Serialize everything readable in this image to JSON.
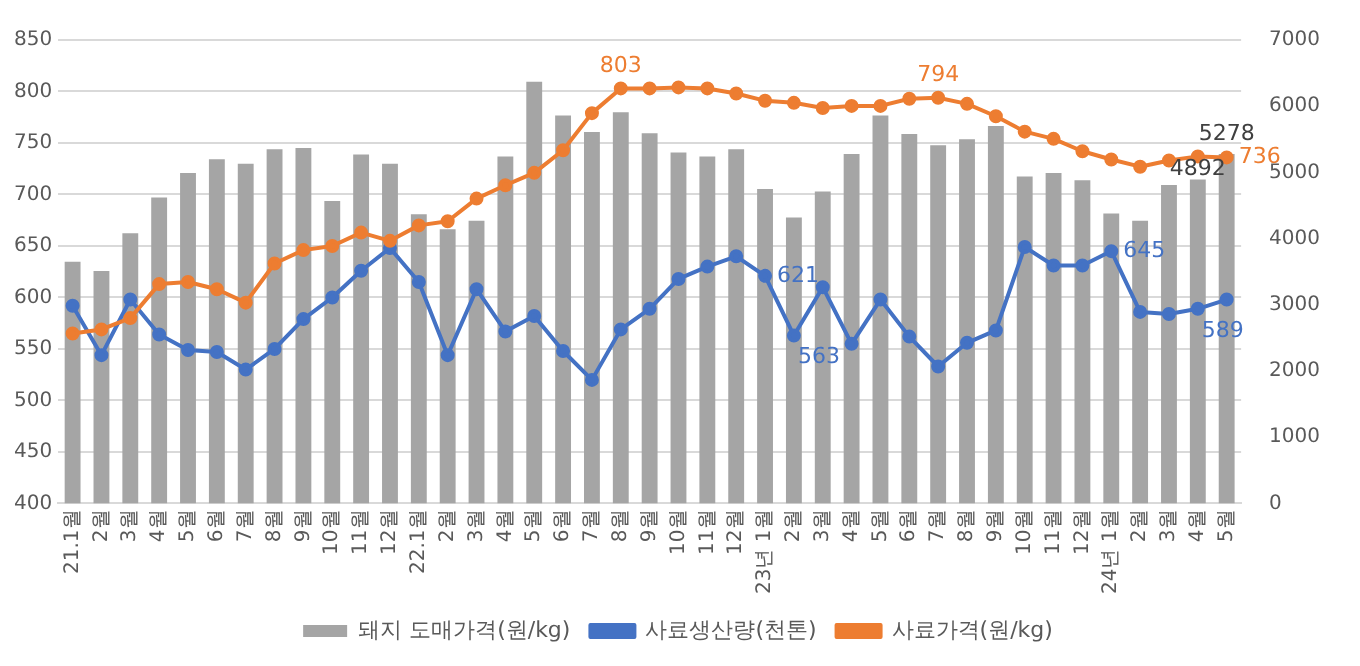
{
  "chart_data": {
    "type": "bar",
    "legend": "bottom",
    "grid": "y",
    "categories": [
      "21.1월",
      "2월",
      "3월",
      "4월",
      "5월",
      "6월",
      "7월",
      "8월",
      "9월",
      "10월",
      "11월",
      "12월",
      "22.1월",
      "2월",
      "3월",
      "4월",
      "5월",
      "6월",
      "7월",
      "8월",
      "9월",
      "10월",
      "11월",
      "12월",
      "23년 1월",
      "2월",
      "3월",
      "4월",
      "5월",
      "6월",
      "7월",
      "8월",
      "9월",
      "10월",
      "11월",
      "12월",
      "24년 1월",
      "2월",
      "3월",
      "4월",
      "5월"
    ],
    "ylim": [
      400,
      850
    ],
    "yticks": [
      400,
      450,
      500,
      550,
      600,
      650,
      700,
      750,
      800,
      850
    ],
    "y2lim": [
      0,
      7000
    ],
    "y2ticks": [
      0,
      1000,
      2000,
      3000,
      4000,
      5000,
      6000,
      7000
    ],
    "series": [
      {
        "name": "돼지 도매가격(원/kg)",
        "type": "bar",
        "axis": "y2",
        "color": "#a5a5a5",
        "values": [
          3650,
          3510,
          4080,
          4620,
          4990,
          5200,
          5130,
          5350,
          5370,
          4570,
          5270,
          5130,
          4370,
          4140,
          4270,
          5240,
          6370,
          5860,
          5610,
          5910,
          5590,
          5300,
          5240,
          5350,
          4750,
          4320,
          4710,
          5280,
          5860,
          5580,
          5410,
          5500,
          5700,
          4940,
          4990,
          4880,
          4380,
          4270,
          4810,
          4892,
          5278
        ],
        "value_labels": [
          null,
          null,
          null,
          null,
          null,
          null,
          null,
          null,
          null,
          null,
          null,
          null,
          null,
          null,
          null,
          null,
          null,
          null,
          null,
          null,
          null,
          null,
          null,
          null,
          null,
          null,
          null,
          null,
          null,
          null,
          null,
          null,
          null,
          null,
          null,
          null,
          null,
          null,
          null,
          "4892",
          "5278"
        ]
      },
      {
        "name": "사료생산량(천톤)",
        "type": "line",
        "axis": "y",
        "color": "#4472c4",
        "marker": "circle",
        "values": [
          592,
          544,
          598,
          564,
          549,
          547,
          530,
          550,
          579,
          600,
          626,
          648,
          615,
          544,
          608,
          567,
          582,
          548,
          520,
          569,
          589,
          618,
          630,
          640,
          621,
          563,
          610,
          555,
          598,
          562,
          533,
          556,
          568,
          649,
          631,
          631,
          645,
          586,
          584,
          589,
          598
        ],
        "value_labels": [
          null,
          null,
          null,
          null,
          null,
          null,
          null,
          null,
          null,
          null,
          null,
          null,
          null,
          null,
          null,
          null,
          null,
          null,
          null,
          null,
          null,
          null,
          null,
          null,
          "621",
          "563",
          null,
          null,
          null,
          null,
          null,
          null,
          null,
          null,
          null,
          null,
          "645",
          null,
          null,
          "589",
          null
        ]
      },
      {
        "name": "사료가격(원/kg)",
        "type": "line",
        "axis": "y",
        "color": "#ed7d31",
        "marker": "circle",
        "values": [
          565,
          569,
          580,
          613,
          615,
          608,
          595,
          633,
          646,
          650,
          663,
          655,
          670,
          674,
          696,
          709,
          721,
          743,
          779,
          803,
          803,
          804,
          803,
          798,
          791,
          789,
          784,
          786,
          786,
          793,
          794,
          788,
          776,
          761,
          754,
          742,
          734,
          727,
          733,
          737,
          736
        ],
        "value_labels": [
          null,
          null,
          null,
          null,
          null,
          null,
          null,
          null,
          null,
          null,
          null,
          null,
          null,
          null,
          null,
          null,
          null,
          null,
          null,
          "803",
          null,
          null,
          null,
          null,
          null,
          null,
          null,
          null,
          null,
          null,
          "794",
          null,
          null,
          null,
          null,
          null,
          null,
          null,
          null,
          null,
          "736"
        ]
      }
    ]
  }
}
